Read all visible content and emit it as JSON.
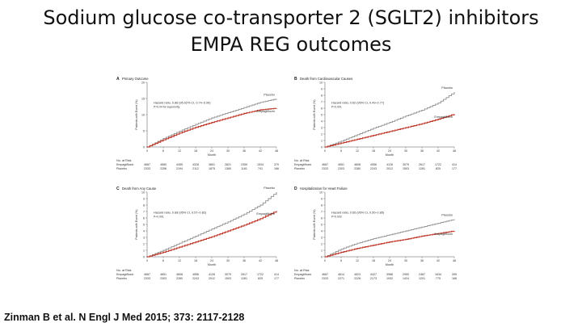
{
  "title_line1": "Sodium glucose co-transporter 2 (SGLT2) inhibitors",
  "title_line2": "EMPA REG outcomes",
  "citation": "Zinman B et al. N Engl J Med 2015; 373: 2117-2128",
  "colors": {
    "placebo": "#8c8c8c",
    "empagliflozin": "#c0392b"
  },
  "chart_data": [
    {
      "type": "line",
      "panel": "A",
      "title": "Primary Outcome",
      "ylabel": "Patients with Event (%)",
      "xlabel": "Month",
      "x": [
        0,
        6,
        12,
        18,
        24,
        30,
        36,
        42,
        48
      ],
      "ylim": [
        0,
        20
      ],
      "yticks": [
        0,
        5,
        10,
        15,
        20
      ],
      "annotation": "Hazard ratio, 0.86 (95.02% CI, 0.74–0.99)",
      "annotation2": "P=0.04 for superiority",
      "series": [
        {
          "name": "Placebo",
          "values": [
            0,
            2.6,
            4.9,
            7.0,
            9.0,
            10.6,
            12.2,
            13.8,
            14.9
          ]
        },
        {
          "name": "Empagliflozin",
          "values": [
            0,
            2.2,
            4.3,
            6.1,
            7.6,
            9.0,
            10.4,
            11.5,
            12.0
          ]
        }
      ],
      "at_risk": {
        "header": "No. at Risk",
        "rows": [
          {
            "name": "Empagliflozin",
            "values": [
              "4687",
              "4580",
              "4455",
              "4328",
              "3851",
              "2821",
              "2359",
              "1534",
              "370"
            ]
          },
          {
            "name": "Placebo",
            "values": [
              "2333",
              "2256",
              "2194",
              "2112",
              "1875",
              "1380",
              "1161",
              "741",
              "166"
            ]
          }
        ]
      }
    },
    {
      "type": "line",
      "panel": "B",
      "title": "Death from Cardiovascular Causes",
      "ylabel": "Patients with Event (%)",
      "xlabel": "Month",
      "x": [
        0,
        6,
        12,
        18,
        24,
        30,
        36,
        42,
        48
      ],
      "ylim": [
        0,
        10
      ],
      "yticks": [
        0,
        1,
        2,
        3,
        4,
        5,
        6,
        7,
        8,
        9,
        10
      ],
      "annotation": "Hazard ratio, 0.62 (95% CI, 0.49–0.77)",
      "annotation2": "P<0.001",
      "series": [
        {
          "name": "Placebo",
          "values": [
            0,
            0.9,
            1.9,
            2.9,
            3.8,
            4.8,
            5.7,
            6.8,
            8.5
          ]
        },
        {
          "name": "Empagliflozin",
          "values": [
            0,
            0.6,
            1.2,
            1.8,
            2.4,
            3.0,
            3.6,
            4.3,
            5.1
          ]
        }
      ],
      "at_risk": {
        "header": "No. at Risk",
        "rows": [
          {
            "name": "Empagliflozin",
            "values": [
              "4687",
              "4651",
              "4608",
              "4556",
              "4128",
              "3079",
              "2617",
              "1722",
              "414"
            ]
          },
          {
            "name": "Placebo",
            "values": [
              "2333",
              "2303",
              "2280",
              "2243",
              "2012",
              "1503",
              "1281",
              "825",
              "177"
            ]
          }
        ]
      }
    },
    {
      "type": "line",
      "panel": "C",
      "title": "Death from Any Cause",
      "ylabel": "Patients with Event (%)",
      "xlabel": "Month",
      "x": [
        0,
        6,
        12,
        18,
        24,
        30,
        36,
        42,
        48
      ],
      "ylim": [
        0,
        10
      ],
      "yticks": [
        0,
        1,
        2,
        3,
        4,
        5,
        6,
        7,
        8,
        9,
        10
      ],
      "annotation": "Hazard ratio, 0.68 (95% CI, 0.57–0.82)",
      "annotation2": "P<0.001",
      "series": [
        {
          "name": "Placebo",
          "values": [
            0,
            1.0,
            2.1,
            3.2,
            4.3,
            5.4,
            6.6,
            8.0,
            10.0
          ]
        },
        {
          "name": "Empagliflozin",
          "values": [
            0,
            0.7,
            1.5,
            2.3,
            3.1,
            4.0,
            4.9,
            5.9,
            7.1
          ]
        }
      ],
      "at_risk": {
        "header": "No. at Risk",
        "rows": [
          {
            "name": "Empagliflozin",
            "values": [
              "4687",
              "4651",
              "4608",
              "4556",
              "4128",
              "3079",
              "2617",
              "1722",
              "414"
            ]
          },
          {
            "name": "Placebo",
            "values": [
              "2333",
              "2303",
              "2280",
              "2243",
              "2012",
              "1503",
              "1281",
              "825",
              "177"
            ]
          }
        ]
      }
    },
    {
      "type": "line",
      "panel": "D",
      "title": "Hospitalization for Heart Failure",
      "ylabel": "Patients with Event (%)",
      "xlabel": "Month",
      "x": [
        0,
        6,
        12,
        18,
        24,
        30,
        36,
        42,
        48
      ],
      "ylim": [
        0,
        10
      ],
      "yticks": [
        0,
        1,
        2,
        3,
        4,
        5,
        6,
        7,
        8,
        9,
        10
      ],
      "annotation": "Hazard ratio, 0.65 (95% CI, 0.50–0.85)",
      "annotation2": "P=0.002",
      "series": [
        {
          "name": "Placebo",
          "values": [
            0,
            1.2,
            2.1,
            2.8,
            3.4,
            4.0,
            4.6,
            5.2,
            5.8
          ]
        },
        {
          "name": "Empagliflozin",
          "values": [
            0,
            0.7,
            1.3,
            1.8,
            2.3,
            2.7,
            3.2,
            3.6,
            4.0
          ]
        }
      ],
      "at_risk": {
        "header": "No. at Risk",
        "rows": [
          {
            "name": "Empagliflozin",
            "values": [
              "4687",
              "4614",
              "4523",
              "4427",
              "3988",
              "2950",
              "2487",
              "1634",
              "395"
            ]
          },
          {
            "name": "Placebo",
            "values": [
              "2333",
              "2271",
              "2226",
              "2173",
              "1932",
              "1424",
              "1201",
              "775",
              "168"
            ]
          }
        ]
      }
    }
  ]
}
